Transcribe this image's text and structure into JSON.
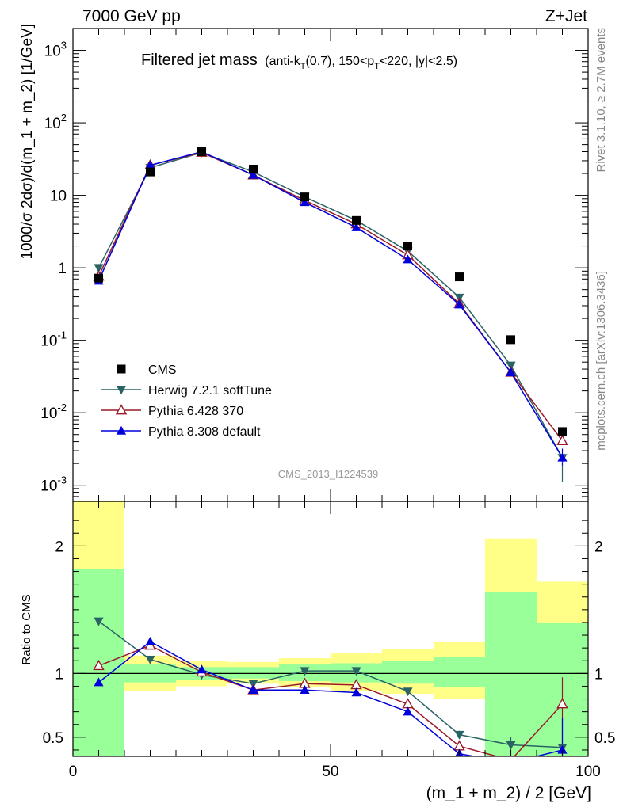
{
  "header": {
    "left": "7000 GeV pp",
    "right": "Z+Jet"
  },
  "side_labels": {
    "rivet": "Rivet 3.1.10, ≥ 2.7M events",
    "mcplots": "mcplots.cern.ch [arXiv:1306.3436]"
  },
  "chart_data": {
    "type": "line",
    "title": "Filtered jet mass",
    "subtitle": "(anti-kT(0.7), 150<pT<220, |y|<2.5)",
    "analysis_label": "CMS_2013_I1224539",
    "xlabel": "(m_1 + m_2) / 2 [GeV]",
    "ylabel": "1000/σ 2dσ)/d(m_1 + m_2) [1/GeV]",
    "ratio_ylabel": "Ratio to CMS",
    "xlim": [
      0,
      100
    ],
    "ylim": [
      0.0006,
      2000
    ],
    "yscale": "log",
    "ratio_ylim": [
      0.35,
      2.35
    ],
    "x": [
      5,
      15,
      25,
      35,
      45,
      55,
      65,
      75,
      85,
      95
    ],
    "x_ticks": [
      "0",
      "50",
      "100"
    ],
    "y_ticks": [
      {
        "base": "10",
        "exp": "-3",
        "value": 0.001
      },
      {
        "base": "10",
        "exp": "-2",
        "value": 0.01
      },
      {
        "base": "10",
        "exp": "-1",
        "value": 0.1
      },
      {
        "base": "1",
        "exp": "",
        "value": 1
      },
      {
        "base": "10",
        "exp": "",
        "value": 10
      },
      {
        "base": "10",
        "exp": "2",
        "value": 100
      },
      {
        "base": "10",
        "exp": "3",
        "value": 1000
      }
    ],
    "ratio_ticks": [
      "0.5",
      "1",
      "2"
    ],
    "ratio_tick_values": [
      0.5,
      1,
      2
    ],
    "data": {
      "name": "CMS",
      "values": [
        0.72,
        21,
        40,
        23,
        9.5,
        4.5,
        2.0,
        0.75,
        0.102,
        0.0055
      ]
    },
    "series": [
      {
        "name": "Herwig 7.2.1 softTune",
        "color": "#2a6366",
        "marker": "triangle-down",
        "values": [
          1.0,
          24,
          39,
          21,
          9.5,
          4.5,
          1.7,
          0.39,
          0.045,
          0.0024
        ],
        "ratio": [
          1.41,
          1.11,
          0.99,
          0.92,
          1.02,
          1.02,
          0.86,
          0.52,
          0.44,
          0.42
        ]
      },
      {
        "name": "Pythia 6.428 370",
        "color": "#9a1a2a",
        "marker": "triangle-open",
        "values": [
          0.76,
          26,
          39,
          19,
          8.5,
          4.0,
          1.5,
          0.32,
          0.036,
          0.0041
        ],
        "ratio": [
          1.06,
          1.22,
          1.01,
          0.87,
          0.92,
          0.91,
          0.76,
          0.43,
          0.32,
          0.76
        ]
      },
      {
        "name": "Pythia 8.308 default",
        "color": "#0000dd",
        "marker": "triangle",
        "values": [
          0.66,
          26,
          40,
          19,
          8.0,
          3.6,
          1.3,
          0.31,
          0.036,
          0.0024
        ],
        "ratio": [
          0.93,
          1.25,
          1.03,
          0.87,
          0.87,
          0.85,
          0.7,
          0.37,
          0.3,
          0.4
        ]
      }
    ],
    "ratio_bands": {
      "edges": [
        0,
        10,
        20,
        30,
        40,
        50,
        60,
        70,
        80,
        90,
        100
      ],
      "yellow_lo": [
        0.35,
        0.86,
        0.9,
        0.92,
        0.89,
        0.86,
        0.84,
        0.8,
        0.35,
        0.35
      ],
      "yellow_hi": [
        2.35,
        1.14,
        1.1,
        1.09,
        1.12,
        1.16,
        1.19,
        1.25,
        2.06,
        1.72
      ],
      "green_lo": [
        0.35,
        0.93,
        0.95,
        0.96,
        0.94,
        0.93,
        0.92,
        0.89,
        0.35,
        0.35
      ],
      "green_hi": [
        1.82,
        1.07,
        1.05,
        1.05,
        1.07,
        1.08,
        1.1,
        1.13,
        1.64,
        1.4
      ]
    }
  }
}
